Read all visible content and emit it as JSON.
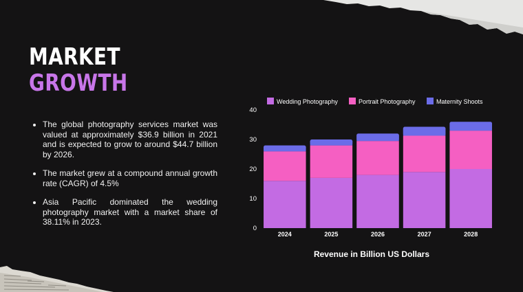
{
  "slide": {
    "title_line1": "MARKET",
    "title_line2": "GROWTH",
    "bullets": [
      "The global photography services market was valued at approximately $36.9 billion in 2021 and is expected to grow to around $44.7 billion by 2026.",
      "The market grew at a compound annual growth rate (CAGR) of 4.5%",
      "Asia Pacific dominated the wedding photography market with a market share of 38.11% in 2023."
    ]
  },
  "chart_data": {
    "type": "bar",
    "stacked": true,
    "categories": [
      "2024",
      "2025",
      "2026",
      "2027",
      "2028"
    ],
    "series": [
      {
        "name": "Wedding Photography",
        "color": "#c36be3",
        "values": [
          16,
          17,
          18,
          19,
          20
        ]
      },
      {
        "name": "Portrait Photography",
        "color": "#f55fc2",
        "values": [
          10,
          11,
          11.5,
          12.3,
          13
        ]
      },
      {
        "name": "Maternity Shoots",
        "color": "#6b6ce8",
        "values": [
          2,
          2,
          2.5,
          3,
          3
        ]
      }
    ],
    "xlabel": "Revenue in Billion US Dollars",
    "ylabel": "",
    "ylim": [
      0,
      40
    ],
    "yticks": [
      0,
      10,
      20,
      30,
      40
    ],
    "legend": "top",
    "grid": false
  }
}
